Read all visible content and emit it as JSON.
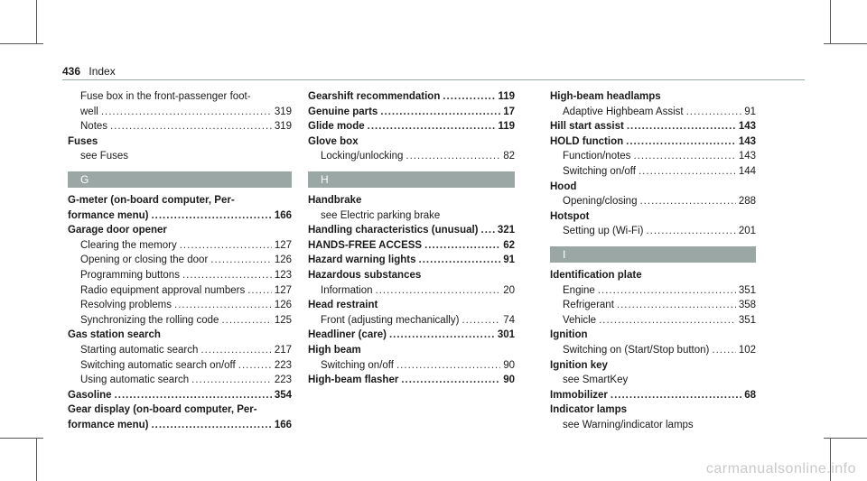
{
  "header": {
    "page_number": "436",
    "title": "Index"
  },
  "columns": [
    [
      {
        "type": "sub",
        "label": "Fuse box in the front-passenger foot-"
      },
      {
        "type": "sub",
        "label": "well",
        "page": "319"
      },
      {
        "type": "sub",
        "label": "Notes",
        "page": "319"
      },
      {
        "type": "head",
        "label": "Fuses"
      },
      {
        "type": "sub",
        "label": "see Fuses"
      },
      {
        "type": "letter",
        "label": "G"
      },
      {
        "type": "head",
        "label": "G-meter (on-board computer, Per-"
      },
      {
        "type": "head",
        "label": "formance menu)",
        "page": "166"
      },
      {
        "type": "head",
        "label": "Garage door opener"
      },
      {
        "type": "sub",
        "label": "Clearing the memory",
        "page": "127"
      },
      {
        "type": "sub",
        "label": "Opening or closing the door",
        "page": "126"
      },
      {
        "type": "sub",
        "label": "Programming buttons",
        "page": "123"
      },
      {
        "type": "sub",
        "label": "Radio equipment approval numbers",
        "page": "127"
      },
      {
        "type": "sub",
        "label": "Resolving problems",
        "page": "126"
      },
      {
        "type": "sub",
        "label": "Synchronizing the rolling code",
        "page": "125"
      },
      {
        "type": "head",
        "label": "Gas station search"
      },
      {
        "type": "sub",
        "label": "Starting automatic search",
        "page": "217"
      },
      {
        "type": "sub",
        "label": "Switching automatic search on/off",
        "page": "223"
      },
      {
        "type": "sub",
        "label": "Using automatic search",
        "page": "223"
      },
      {
        "type": "head",
        "label": "Gasoline",
        "page": "354"
      },
      {
        "type": "head",
        "label": "Gear display (on-board computer, Per-"
      },
      {
        "type": "head",
        "label": "formance menu)",
        "page": "166"
      }
    ],
    [
      {
        "type": "head",
        "label": "Gearshift recommendation",
        "page": "119"
      },
      {
        "type": "head",
        "label": "Genuine parts",
        "page": "17"
      },
      {
        "type": "head",
        "label": "Glide mode",
        "page": "119"
      },
      {
        "type": "head",
        "label": "Glove box"
      },
      {
        "type": "sub",
        "label": "Locking/unlocking",
        "page": "82"
      },
      {
        "type": "letter",
        "label": "H"
      },
      {
        "type": "head",
        "label": "Handbrake"
      },
      {
        "type": "sub",
        "label": "see Electric parking brake"
      },
      {
        "type": "head",
        "label": "Handling characteristics (unusual)",
        "page": "321"
      },
      {
        "type": "head",
        "label": "HANDS-FREE ACCESS",
        "page": "62"
      },
      {
        "type": "head",
        "label": "Hazard warning lights",
        "page": "91"
      },
      {
        "type": "head",
        "label": "Hazardous substances"
      },
      {
        "type": "sub",
        "label": "Information",
        "page": "20"
      },
      {
        "type": "head",
        "label": "Head restraint"
      },
      {
        "type": "sub",
        "label": "Front (adjusting mechanically)",
        "page": "74"
      },
      {
        "type": "head",
        "label": "Headliner (care)",
        "page": "301"
      },
      {
        "type": "head",
        "label": "High beam"
      },
      {
        "type": "sub",
        "label": "Switching on/off",
        "page": "90"
      },
      {
        "type": "head",
        "label": "High-beam flasher",
        "page": "90"
      }
    ],
    [
      {
        "type": "head",
        "label": "High-beam headlamps"
      },
      {
        "type": "sub",
        "label": "Adaptive Highbeam Assist",
        "page": "91"
      },
      {
        "type": "head",
        "label": "Hill start assist",
        "page": "143"
      },
      {
        "type": "head",
        "label": "HOLD function",
        "page": "143"
      },
      {
        "type": "sub",
        "label": "Function/notes",
        "page": "143"
      },
      {
        "type": "sub",
        "label": "Switching on/off",
        "page": "144"
      },
      {
        "type": "head",
        "label": "Hood"
      },
      {
        "type": "sub",
        "label": "Opening/closing",
        "page": "288"
      },
      {
        "type": "head",
        "label": "Hotspot"
      },
      {
        "type": "sub",
        "label": "Setting up (Wi-Fi)",
        "page": "201"
      },
      {
        "type": "letter",
        "label": "I"
      },
      {
        "type": "head",
        "label": "Identification plate"
      },
      {
        "type": "sub",
        "label": "Engine",
        "page": "351"
      },
      {
        "type": "sub",
        "label": "Refrigerant",
        "page": "358"
      },
      {
        "type": "sub",
        "label": "Vehicle",
        "page": "351"
      },
      {
        "type": "head",
        "label": "Ignition"
      },
      {
        "type": "sub",
        "label": "Switching on (Start/Stop button)",
        "page": "102"
      },
      {
        "type": "head",
        "label": "Ignition key"
      },
      {
        "type": "sub",
        "label": "see SmartKey"
      },
      {
        "type": "head",
        "label": "Immobilizer",
        "page": "68"
      },
      {
        "type": "head",
        "label": "Indicator lamps"
      },
      {
        "type": "sub",
        "label": "see Warning/indicator lamps"
      }
    ]
  ],
  "watermark": "carmanualsonline.info"
}
